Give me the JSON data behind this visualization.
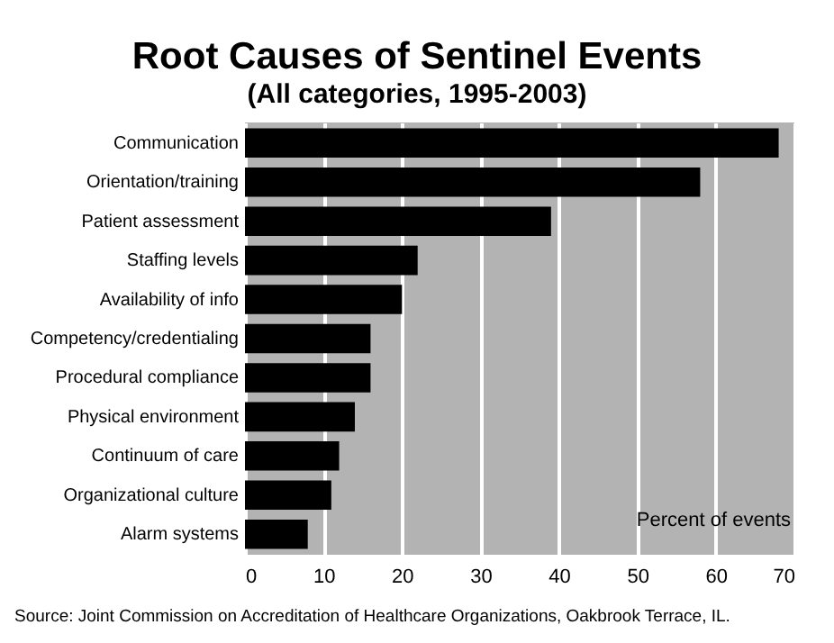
{
  "chart_data": {
    "type": "bar",
    "orientation": "horizontal",
    "title": "Root Causes of Sentinel Events",
    "subtitle": "(All categories, 1995-2003)",
    "xlabel": "Percent of events",
    "categories": [
      "Communication",
      "Orientation/training",
      "Patient assessment",
      "Staffing levels",
      "Availability of info",
      "Competency/credentialing",
      "Procedural compliance",
      "Physical environment",
      "Continuum of care",
      "Organizational culture",
      "Alarm systems"
    ],
    "values": [
      68,
      58,
      39,
      22,
      20,
      16,
      16,
      14,
      12,
      11,
      8
    ],
    "color": "#000000",
    "xlim": [
      0,
      70
    ],
    "xticks": [
      0,
      10,
      20,
      30,
      40,
      50,
      60,
      70
    ],
    "grid": "x",
    "annotations": [
      "Source: Joint Commission on Accreditation of Healthcare Organizations, Oakbrook Terrace, IL."
    ]
  }
}
